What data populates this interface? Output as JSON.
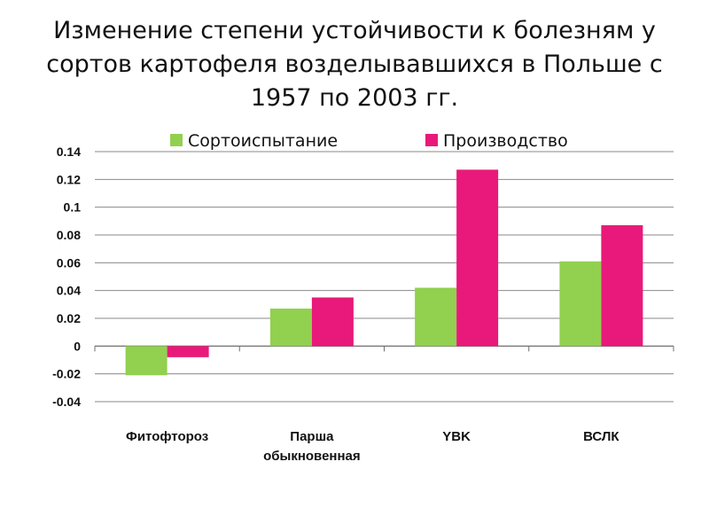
{
  "chart_data": {
    "type": "bar",
    "title_lines": [
      "Изменение степени устойчивости к болезням у",
      "сортов картофеля возделывавшихся в Польше с",
      "1957 по 2003 гг."
    ],
    "categories": [
      [
        "Фитофтороз"
      ],
      [
        "Парша",
        "обыкновенная"
      ],
      [
        "YBK"
      ],
      [
        "ВСЛК"
      ]
    ],
    "series": [
      {
        "name": "Сортоиспытание",
        "color": "#92D050",
        "values": [
          -0.021,
          0.027,
          0.042,
          0.061
        ]
      },
      {
        "name": "Производство",
        "color": "#E8197A",
        "values": [
          -0.008,
          0.035,
          0.127,
          0.087
        ]
      }
    ],
    "ylim": [
      -0.04,
      0.14
    ],
    "yticks": [
      "0.14",
      "0.12",
      "0.1",
      "0.08",
      "0.06",
      "0.04",
      "0.02",
      "0",
      "-0.02",
      "-0.04"
    ],
    "ytick_values": [
      0.14,
      0.12,
      0.1,
      0.08,
      0.06,
      0.04,
      0.02,
      0,
      -0.02,
      -0.04
    ],
    "grid": true,
    "legend_position": "top"
  }
}
